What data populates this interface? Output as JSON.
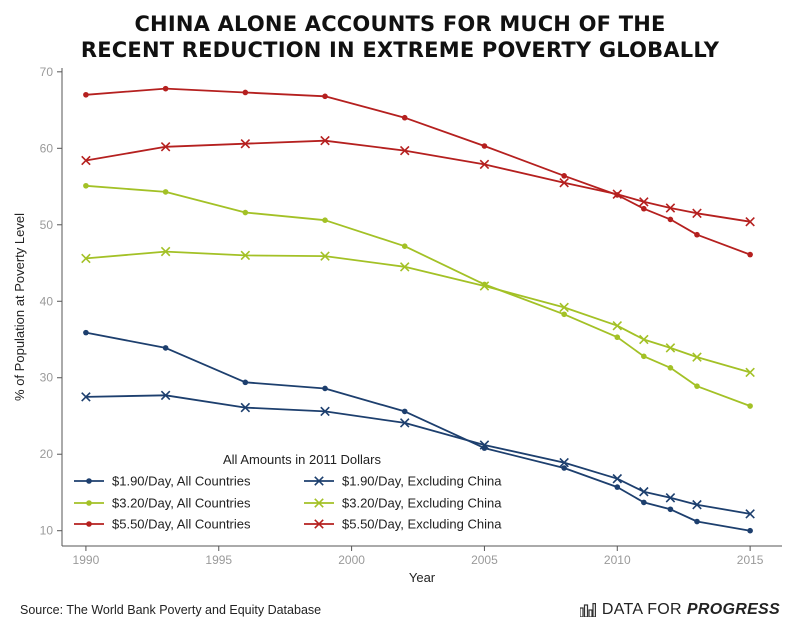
{
  "header": {
    "title_line1": "CHINA ALONE ACCOUNTS FOR MUCH OF THE",
    "title_line2": "RECENT REDUCTION IN EXTREME POVERTY GLOBALLY"
  },
  "footer": {
    "source": "Source: The World Bank Poverty and Equity Database",
    "brand_regular": "DATA FOR",
    "brand_bold": "PROGRESS",
    "brand_icon": "bar-chart-icon"
  },
  "colors": {
    "navy": "#1d3f6e",
    "green": "#a3c126",
    "red": "#b5201f",
    "axis": "#555555",
    "tick_text": "#9a9a9a"
  },
  "chart_data": {
    "type": "line",
    "title": "China Alone Accounts for Much of the Recent Reduction in Extreme Poverty Globally",
    "xlabel": "Year",
    "ylabel": "% of Population at Poverty Level",
    "xlim": [
      1989.1,
      2016.2
    ],
    "ylim": [
      8,
      70.5
    ],
    "xticks": [
      1990,
      1995,
      2000,
      2005,
      2010,
      2015
    ],
    "yticks": [
      10,
      20,
      30,
      40,
      50,
      60,
      70
    ],
    "grid": false,
    "legend_title": "All Amounts in 2011 Dollars",
    "legend_position": "bottom-left",
    "x": [
      1990,
      1993,
      1996,
      1999,
      2002,
      2005,
      2008,
      2010,
      2011,
      2012,
      2013,
      2015
    ],
    "series": [
      {
        "name": "$1.90/Day, All Countries",
        "color": "navy",
        "marker": "dot",
        "values": [
          35.9,
          33.9,
          29.4,
          28.6,
          25.6,
          20.8,
          18.2,
          15.7,
          13.7,
          12.8,
          11.2,
          10.0
        ]
      },
      {
        "name": "$1.90/Day, Excluding China",
        "color": "navy",
        "marker": "x",
        "values": [
          27.5,
          27.7,
          26.1,
          25.6,
          24.1,
          21.2,
          18.9,
          16.8,
          15.1,
          14.3,
          13.4,
          12.2
        ]
      },
      {
        "name": "$3.20/Day, All Countries",
        "color": "green",
        "marker": "dot",
        "values": [
          55.1,
          54.3,
          51.6,
          50.6,
          47.2,
          42.2,
          38.3,
          35.3,
          32.8,
          31.3,
          28.9,
          26.3
        ]
      },
      {
        "name": "$3.20/Day, Excluding China",
        "color": "green",
        "marker": "x",
        "values": [
          45.6,
          46.5,
          46.0,
          45.9,
          44.5,
          42.0,
          39.2,
          36.8,
          35.0,
          33.9,
          32.7,
          30.7
        ]
      },
      {
        "name": "$5.50/Day, All Countries",
        "color": "red",
        "marker": "dot",
        "values": [
          67.0,
          67.8,
          67.3,
          66.8,
          64.0,
          60.3,
          56.4,
          53.9,
          52.1,
          50.7,
          48.7,
          46.1
        ]
      },
      {
        "name": "$5.50/Day, Excluding China",
        "color": "red",
        "marker": "x",
        "values": [
          58.4,
          60.2,
          60.6,
          61.0,
          59.7,
          57.9,
          55.5,
          54.0,
          53.0,
          52.2,
          51.5,
          50.4
        ]
      }
    ]
  }
}
